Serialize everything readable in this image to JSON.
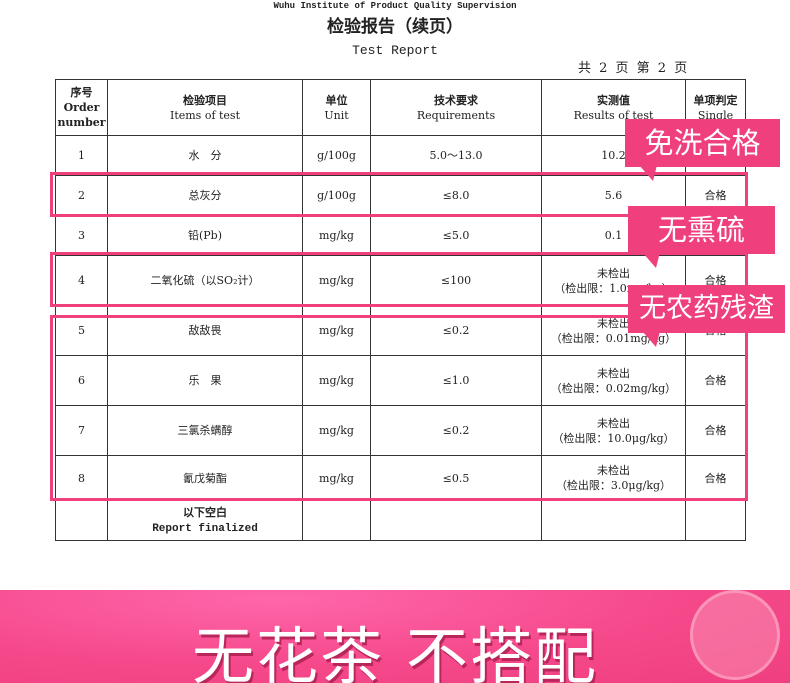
{
  "report": {
    "institute": "Wuhu Institute of Product Quality Supervision",
    "title": "检验报告（续页）",
    "subtitle": "Test Report",
    "page_info": "共 2 页  第  2 页",
    "headers": [
      {
        "cn": "序号",
        "en": "Order number"
      },
      {
        "cn": "检验项目",
        "en": "Items of test"
      },
      {
        "cn": "单位",
        "en": "Unit"
      },
      {
        "cn": "技术要求",
        "en": "Requirements"
      },
      {
        "cn": "实测值",
        "en": "Results of test"
      },
      {
        "cn": "单项判定",
        "en": "Single"
      }
    ],
    "rows": [
      {
        "no": "1",
        "item": "水　分",
        "unit": "g/100g",
        "req": "5.0～13.0",
        "r1": "10.2",
        "r2": "",
        "judge": ""
      },
      {
        "no": "2",
        "item": "总灰分",
        "unit": "g/100g",
        "req": "≤8.0",
        "r1": "5.6",
        "r2": "",
        "judge": "合格"
      },
      {
        "no": "3",
        "item": "铅(Pb)",
        "unit": "mg/kg",
        "req": "≤5.0",
        "r1": "0.1",
        "r2": "",
        "judge": ""
      },
      {
        "no": "4",
        "item": "二氧化硫（以SO₂计）",
        "unit": "mg/kg",
        "req": "≤100",
        "r1": "未检出",
        "r2": "（检出限：1.0mg/kg）",
        "judge": "合格"
      },
      {
        "no": "5",
        "item": "敌敌畏",
        "unit": "mg/kg",
        "req": "≤0.2",
        "r1": "未检出",
        "r2": "（检出限：0.01mg/kg）",
        "judge": "合格"
      },
      {
        "no": "6",
        "item": "乐　果",
        "unit": "mg/kg",
        "req": "≤1.0",
        "r1": "未检出",
        "r2": "（检出限：0.02mg/kg）",
        "judge": "合格"
      },
      {
        "no": "7",
        "item": "三氯杀螨醇",
        "unit": "mg/kg",
        "req": "≤0.2",
        "r1": "未检出",
        "r2": "（检出限：10.0μg/kg）",
        "judge": "合格"
      },
      {
        "no": "8",
        "item": "氰戊菊酯",
        "unit": "mg/kg",
        "req": "≤0.5",
        "r1": "未检出",
        "r2": "（检出限：3.0μg/kg）",
        "judge": "合格"
      }
    ],
    "final": {
      "cn": "以下空白",
      "en": "Report finalized"
    }
  },
  "callouts": [
    "免洗合格",
    "无熏硫",
    "无农药残渣"
  ],
  "banner": {
    "text": "无花茶 不搭配"
  },
  "colors": {
    "accent": "#ef3f7d"
  }
}
